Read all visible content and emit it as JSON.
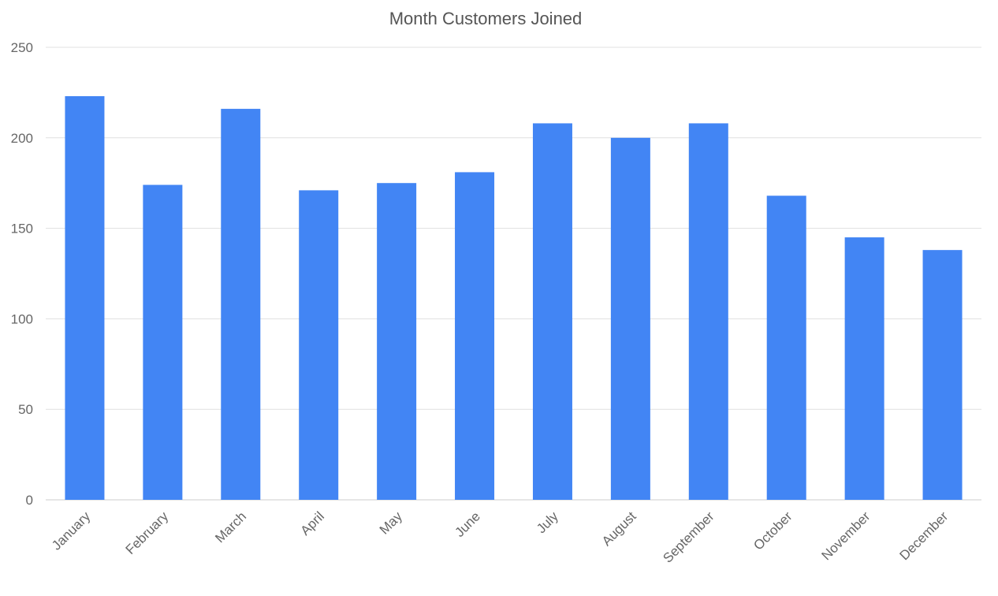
{
  "chart_data": {
    "type": "bar",
    "title": "Month Customers Joined",
    "xlabel": "",
    "ylabel": "",
    "categories": [
      "January",
      "February",
      "March",
      "April",
      "May",
      "June",
      "July",
      "August",
      "September",
      "October",
      "November",
      "December"
    ],
    "values": [
      223,
      174,
      216,
      171,
      175,
      181,
      208,
      200,
      208,
      168,
      145,
      138
    ],
    "ylim": [
      0,
      250
    ],
    "yticks": [
      "0",
      "50",
      "100",
      "150",
      "200",
      "250"
    ],
    "grid": true,
    "bar_color": "#4285f4"
  }
}
